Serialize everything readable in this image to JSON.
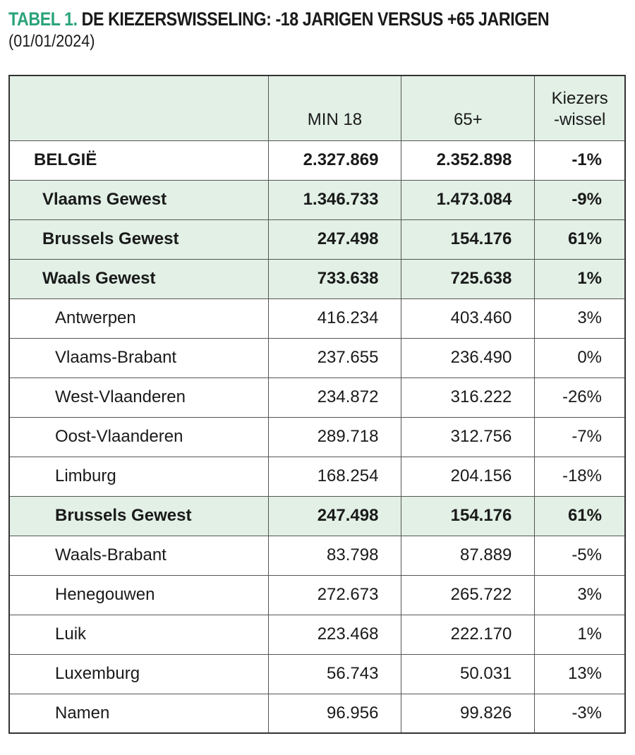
{
  "header": {
    "label": "TABEL 1.",
    "title": "DE KIEZERSWISSELING: -18 JARIGEN VERSUS +65 JARIGEN",
    "subtitle": "(01/01/2024)"
  },
  "table": {
    "columns": [
      "",
      "MIN 18",
      "65+",
      "Kiezers\n-wissel"
    ],
    "rows": [
      [
        "BELGIË",
        "2.327.869",
        "2.352.898",
        "-1%"
      ],
      [
        "Vlaams Gewest",
        "1.346.733",
        "1.473.084",
        "-9%"
      ],
      [
        "Brussels Gewest",
        "247.498",
        "154.176",
        "61%"
      ],
      [
        "Waals Gewest",
        "733.638",
        "725.638",
        "1%"
      ],
      [
        "Antwerpen",
        "416.234",
        "403.460",
        "3%"
      ],
      [
        "Vlaams-Brabant",
        "237.655",
        "236.490",
        "0%"
      ],
      [
        "West-Vlaanderen",
        "234.872",
        "316.222",
        "-26%"
      ],
      [
        "Oost-Vlaanderen",
        "289.718",
        "312.756",
        "-7%"
      ],
      [
        "Limburg",
        "168.254",
        "204.156",
        "-18%"
      ],
      [
        "Brussels Gewest",
        "247.498",
        "154.176",
        "61%"
      ],
      [
        "Waals-Brabant",
        "83.798",
        "87.889",
        "-5%"
      ],
      [
        "Henegouwen",
        "272.673",
        "265.722",
        "3%"
      ],
      [
        "Luik",
        "223.468",
        "222.170",
        "1%"
      ],
      [
        "Luxemburg",
        "56.743",
        "50.031",
        "13%"
      ],
      [
        "Namen",
        "96.956",
        "99.826",
        "-3%"
      ]
    ]
  }
}
